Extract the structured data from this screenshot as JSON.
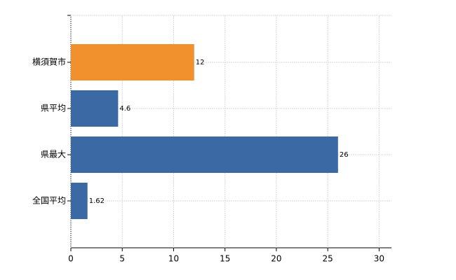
{
  "chart_data": {
    "type": "barh",
    "categories": [
      "横須賀市",
      "県平均",
      "県最大",
      "全国平均"
    ],
    "values": [
      12,
      4.6,
      26,
      1.62
    ],
    "colors": [
      "#f0912e",
      "#3a69a3",
      "#3a69a3",
      "#3a69a3"
    ],
    "xlim": [
      0,
      31.2
    ],
    "xticks": [
      0,
      5,
      10,
      15,
      20,
      25,
      30
    ],
    "grid": true
  }
}
